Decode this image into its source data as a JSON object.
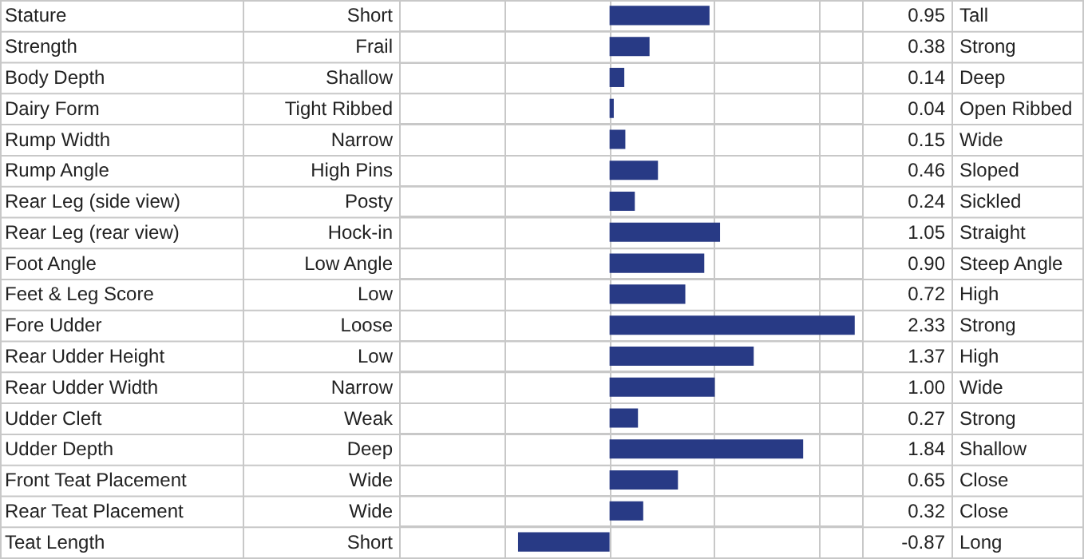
{
  "chart_data": {
    "type": "bar",
    "orientation": "horizontal",
    "color": "#283a85",
    "grid": true,
    "categories": [
      "Stature",
      "Strength",
      "Body Depth",
      "Dairy Form",
      "Rump Width",
      "Rump Angle",
      "Rear Leg (side view)",
      "Rear Leg (rear view)",
      "Foot Angle",
      "Feet & Leg Score",
      "Fore Udder",
      "Rear Udder Height",
      "Rear Udder Width",
      "Udder Cleft",
      "Udder Depth",
      "Front Teat Placement",
      "Rear Teat Placement",
      "Teat Length"
    ],
    "values": [
      0.95,
      0.38,
      0.14,
      0.04,
      0.15,
      0.46,
      0.24,
      1.05,
      0.9,
      0.72,
      2.33,
      1.37,
      1.0,
      0.27,
      1.84,
      0.65,
      0.32,
      -0.87
    ],
    "value_labels": [
      "0.95",
      "0.38",
      "0.14",
      "0.04",
      "0.15",
      "0.46",
      "0.24",
      "1.05",
      "0.90",
      "0.72",
      "2.33",
      "1.37",
      "1.00",
      "0.27",
      "1.84",
      "0.65",
      "0.32",
      "-0.87"
    ],
    "xlim": [
      -2,
      2.4
    ],
    "xticks": [
      {
        "value": -2,
        "label": null
      },
      {
        "value": -1,
        "label": null
      },
      {
        "value": 0,
        "label": null
      },
      {
        "value": 1,
        "label": null
      },
      {
        "value": 2,
        "label": null
      }
    ],
    "annotations": [
      "Short",
      "Frail",
      "Shallow",
      "Tight Ribbed",
      "Narrow",
      "High Pins",
      "Posty",
      "Hock-in",
      "Low Angle",
      "Low",
      "Loose",
      "Low",
      "Narrow",
      "Weak",
      "Deep",
      "Wide",
      "Wide",
      "Short",
      "Tall",
      "Strong",
      "Deep",
      "Open Ribbed",
      "Wide",
      "Sloped",
      "Sickled",
      "Straight",
      "Steep Angle",
      "High",
      "Strong",
      "High",
      "Wide",
      "Strong",
      "Shallow",
      "Close",
      "Close",
      "Long"
    ]
  }
}
